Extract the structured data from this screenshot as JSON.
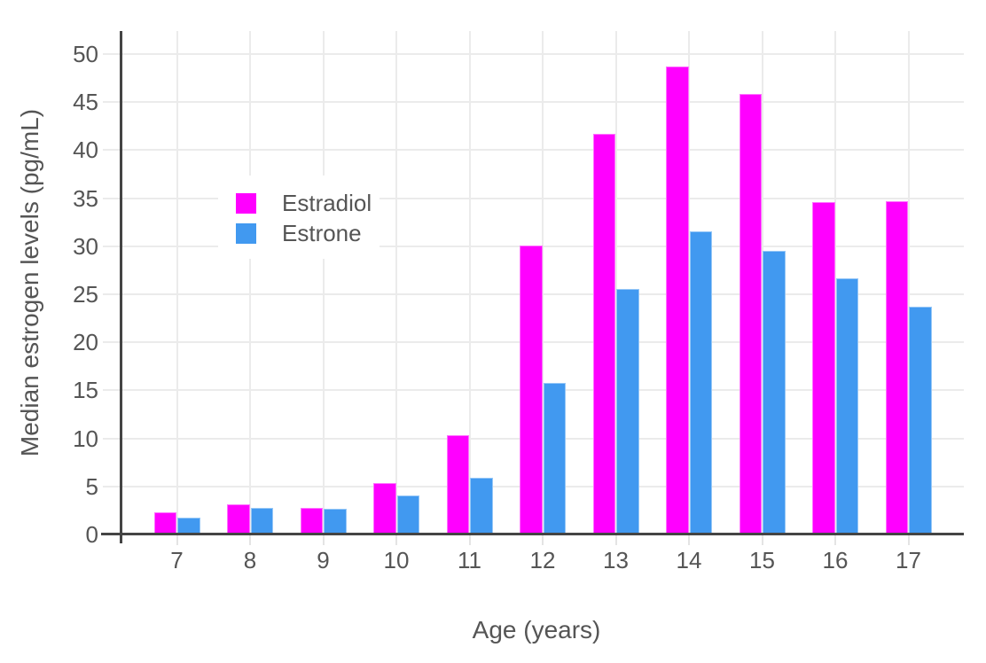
{
  "chart_data": {
    "type": "bar",
    "title": "",
    "xlabel": "Age (years)",
    "ylabel": "Median estrogen levels (pg/mL)",
    "categories": [
      "7",
      "8",
      "9",
      "10",
      "11",
      "12",
      "13",
      "14",
      "15",
      "16",
      "17"
    ],
    "series": [
      {
        "name": "Estradiol",
        "color": "#ff00ff",
        "values": [
          2.2,
          3.0,
          2.7,
          5.3,
          10.2,
          30.0,
          41.6,
          48.6,
          45.8,
          34.5,
          34.6
        ]
      },
      {
        "name": "Estrone",
        "color": "#4199f0",
        "values": [
          1.7,
          2.7,
          2.6,
          4.0,
          5.8,
          15.7,
          25.5,
          31.5,
          29.4,
          26.6,
          23.6
        ]
      }
    ],
    "ylim": [
      0,
      52.4
    ],
    "yticks": [
      0,
      5,
      10,
      15,
      20,
      25,
      30,
      35,
      40,
      45,
      50
    ],
    "grid": true,
    "legend_position": "inside-top-left",
    "colors": {
      "axis": "#444444",
      "grid": "#ebebeb",
      "text": "#555555",
      "background": "#ffffff"
    }
  }
}
